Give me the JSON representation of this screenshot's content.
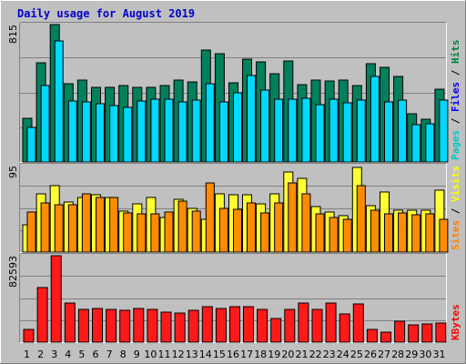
{
  "chart_data": {
    "type": "bar",
    "title": "Daily usage for August 2019",
    "categories": [
      "1",
      "2",
      "3",
      "4",
      "5",
      "6",
      "7",
      "8",
      "9",
      "10",
      "11",
      "12",
      "13",
      "14",
      "15",
      "16",
      "17",
      "18",
      "19",
      "20",
      "21",
      "22",
      "23",
      "24",
      "25",
      "26",
      "27",
      "28",
      "29",
      "30",
      "31"
    ],
    "weekend_days": [
      "3",
      "4",
      "10",
      "11",
      "17",
      "18",
      "24",
      "25",
      "31"
    ],
    "panels": [
      {
        "id": "pages-files-hits",
        "max_label": "815",
        "ylim": [
          0,
          815
        ],
        "legend": [
          "Pages",
          "Files",
          "Hits"
        ],
        "legend_colors": [
          "#00c8c8",
          "#0000ff",
          "#008040"
        ],
        "series": [
          {
            "name": "Hits",
            "color": "#00805c",
            "values": [
              260,
              590,
              815,
              465,
              485,
              445,
              440,
              455,
              440,
              440,
              455,
              485,
              475,
              665,
              640,
              470,
              610,
              595,
              525,
              600,
              460,
              485,
              480,
              485,
              455,
              585,
              560,
              505,
              285,
              255,
              430
            ]
          },
          {
            "name": "Files",
            "color": "#00d8ff",
            "values": [
              205,
              455,
              720,
              360,
              355,
              345,
              335,
              325,
              360,
              375,
              375,
              355,
              365,
              465,
              355,
              410,
              515,
              425,
              375,
              375,
              380,
              340,
              370,
              350,
              365,
              505,
              355,
              365,
              220,
              225,
              365
            ]
          }
        ]
      },
      {
        "id": "sites-visits",
        "max_label": "95",
        "ylim": [
          0,
          95
        ],
        "legend": [
          "Sites",
          "Visits"
        ],
        "legend_colors": [
          "#ff8000",
          "#ffff00"
        ],
        "series": [
          {
            "name": "Visits",
            "color": "#ffff33",
            "values": [
              30,
              64,
              73,
              55,
              60,
              63,
              60,
              45,
              53,
              60,
              38,
              58,
              48,
              36,
              64,
              63,
              63,
              53,
              64,
              88,
              81,
              50,
              44,
              40,
              93,
              51,
              66,
              46,
              46,
              46,
              68
            ]
          },
          {
            "name": "Sites",
            "color": "#ff8c00",
            "values": [
              44,
              54,
              52,
              52,
              64,
              60,
              60,
              43,
              42,
              42,
              44,
              56,
              45,
              76,
              48,
              47,
              54,
              43,
              54,
              76,
              64,
              42,
              38,
              36,
              73,
              46,
              42,
              43,
              41,
              42,
              36
            ]
          }
        ]
      },
      {
        "id": "kbytes",
        "max_label": "82593",
        "ylim": [
          0,
          82593
        ],
        "legend": [
          "KBytes"
        ],
        "legend_colors": [
          "#ff0000"
        ],
        "series": [
          {
            "name": "KBytes",
            "color": "#ff1a1a",
            "values": [
              12000,
              52000,
              82593,
              37000,
              31500,
              32000,
              31500,
              30500,
              32500,
              31000,
              28500,
              27500,
              30000,
              34000,
              32500,
              33500,
              34000,
              31000,
              23000,
              31500,
              37000,
              31000,
              37000,
              27000,
              36500,
              12000,
              9500,
              20000,
              16500,
              17500,
              18500
            ]
          }
        ]
      }
    ]
  }
}
